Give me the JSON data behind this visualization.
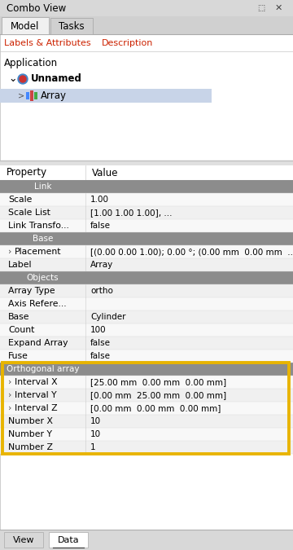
{
  "title": "Combo View",
  "bg_color": "#e8e8e8",
  "tab_active": "Model",
  "tab_inactive": "Tasks",
  "links_tab": "Labels & Attributes",
  "desc_tab": "Description",
  "tree_label": "Application",
  "header_row": [
    "Property",
    "Value"
  ],
  "section_color": "#8c8c8c",
  "section_text_color": "#ffffff",
  "highlight_border": "#e8b400",
  "col_split": 105,
  "rows": [
    {
      "type": "section",
      "label": "Link",
      "value": ""
    },
    {
      "type": "data",
      "label": "Scale",
      "value": "1.00",
      "arrow": false
    },
    {
      "type": "data",
      "label": "Scale List",
      "value": "[1.00 1.00 1.00], ...",
      "arrow": false
    },
    {
      "type": "data",
      "label": "Link Transfo...",
      "value": "false",
      "arrow": false
    },
    {
      "type": "section",
      "label": "Base",
      "value": ""
    },
    {
      "type": "data",
      "label": "Placement",
      "value": "[(0.00 0.00 1.00); 0.00 °; (0.00 mm  0.00 mm  ...",
      "arrow": true
    },
    {
      "type": "data",
      "label": "Label",
      "value": "Array",
      "arrow": false
    },
    {
      "type": "section",
      "label": "Objects",
      "value": ""
    },
    {
      "type": "data",
      "label": "Array Type",
      "value": "ortho",
      "arrow": false
    },
    {
      "type": "data",
      "label": "Axis Refere...",
      "value": "",
      "arrow": false
    },
    {
      "type": "data",
      "label": "Base",
      "value": "Cylinder",
      "arrow": false
    },
    {
      "type": "data",
      "label": "Count",
      "value": "100",
      "arrow": false
    },
    {
      "type": "data",
      "label": "Expand Array",
      "value": "false",
      "arrow": false
    },
    {
      "type": "data",
      "label": "Fuse",
      "value": "false",
      "arrow": false
    },
    {
      "type": "section",
      "label": "Orthogonal array",
      "value": "",
      "highlight": true
    },
    {
      "type": "data",
      "label": "Interval X",
      "value": "[25.00 mm  0.00 mm  0.00 mm]",
      "arrow": true,
      "highlight": true
    },
    {
      "type": "data",
      "label": "Interval Y",
      "value": "[0.00 mm  25.00 mm  0.00 mm]",
      "arrow": true,
      "highlight": true
    },
    {
      "type": "data",
      "label": "Interval Z",
      "value": "[0.00 mm  0.00 mm  0.00 mm]",
      "arrow": true,
      "highlight": true
    },
    {
      "type": "data",
      "label": "Number X",
      "value": "10",
      "arrow": false,
      "highlight": true
    },
    {
      "type": "data",
      "label": "Number Y",
      "value": "10",
      "arrow": false,
      "highlight": true
    },
    {
      "type": "data",
      "label": "Number Z",
      "value": "1",
      "arrow": false,
      "highlight": true
    }
  ],
  "bottom_tabs": [
    "View",
    "Data"
  ]
}
